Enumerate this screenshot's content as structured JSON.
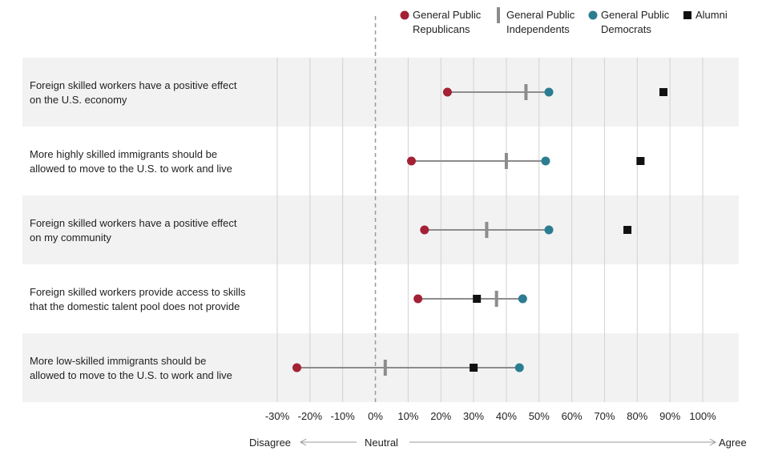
{
  "chart_data": {
    "type": "dot-range",
    "legend": [
      {
        "key": "rep",
        "lines": [
          "General Public",
          "Republicans"
        ],
        "color": "#a32035",
        "marker": "circle"
      },
      {
        "key": "ind",
        "lines": [
          "General Public",
          "Independents"
        ],
        "color": "#8c8c8c",
        "marker": "bar"
      },
      {
        "key": "dem",
        "lines": [
          "General Public",
          "Democrats"
        ],
        "color": "#2b7d91",
        "marker": "circle"
      },
      {
        "key": "alumni",
        "lines": [
          "Alumni"
        ],
        "color": "#111111",
        "marker": "square"
      }
    ],
    "rows": [
      {
        "label": [
          "Foreign skilled workers have a positive effect",
          "on the U.S. economy"
        ],
        "rep": 22,
        "ind": 46,
        "dem": 53,
        "alumni": 88
      },
      {
        "label": [
          "More highly skilled immigrants should be",
          "allowed to move to the U.S. to work and live"
        ],
        "rep": 11,
        "ind": 40,
        "dem": 52,
        "alumni": 81
      },
      {
        "label": [
          "Foreign skilled workers have a positive effect",
          "on my community"
        ],
        "rep": 15,
        "ind": 34,
        "dem": 53,
        "alumni": 77
      },
      {
        "label": [
          "Foreign skilled workers provide access to skills",
          "that the domestic talent pool does not provide"
        ],
        "rep": 13,
        "ind": 37,
        "dem": 45,
        "alumni": 31
      },
      {
        "label": [
          "More low-skilled immigrants should be",
          "allowed to move to the U.S. to work and live"
        ],
        "rep": -24,
        "ind": 3,
        "dem": 44,
        "alumni": 30
      }
    ],
    "xlim": [
      -30,
      100
    ],
    "xticks": [
      -30,
      -20,
      -10,
      0,
      10,
      20,
      30,
      40,
      50,
      60,
      70,
      80,
      90,
      100
    ],
    "tick_labels": [
      "-30%",
      "-20%",
      "-10%",
      "0%",
      "10%",
      "20%",
      "30%",
      "40%",
      "50%",
      "60%",
      "70%",
      "80%",
      "90%",
      "100%"
    ],
    "neutral_line": 0,
    "axis_words": {
      "left": "Disagree",
      "center": "Neutral",
      "right": "Agree"
    },
    "grid": true,
    "legend_position": "top-right"
  }
}
